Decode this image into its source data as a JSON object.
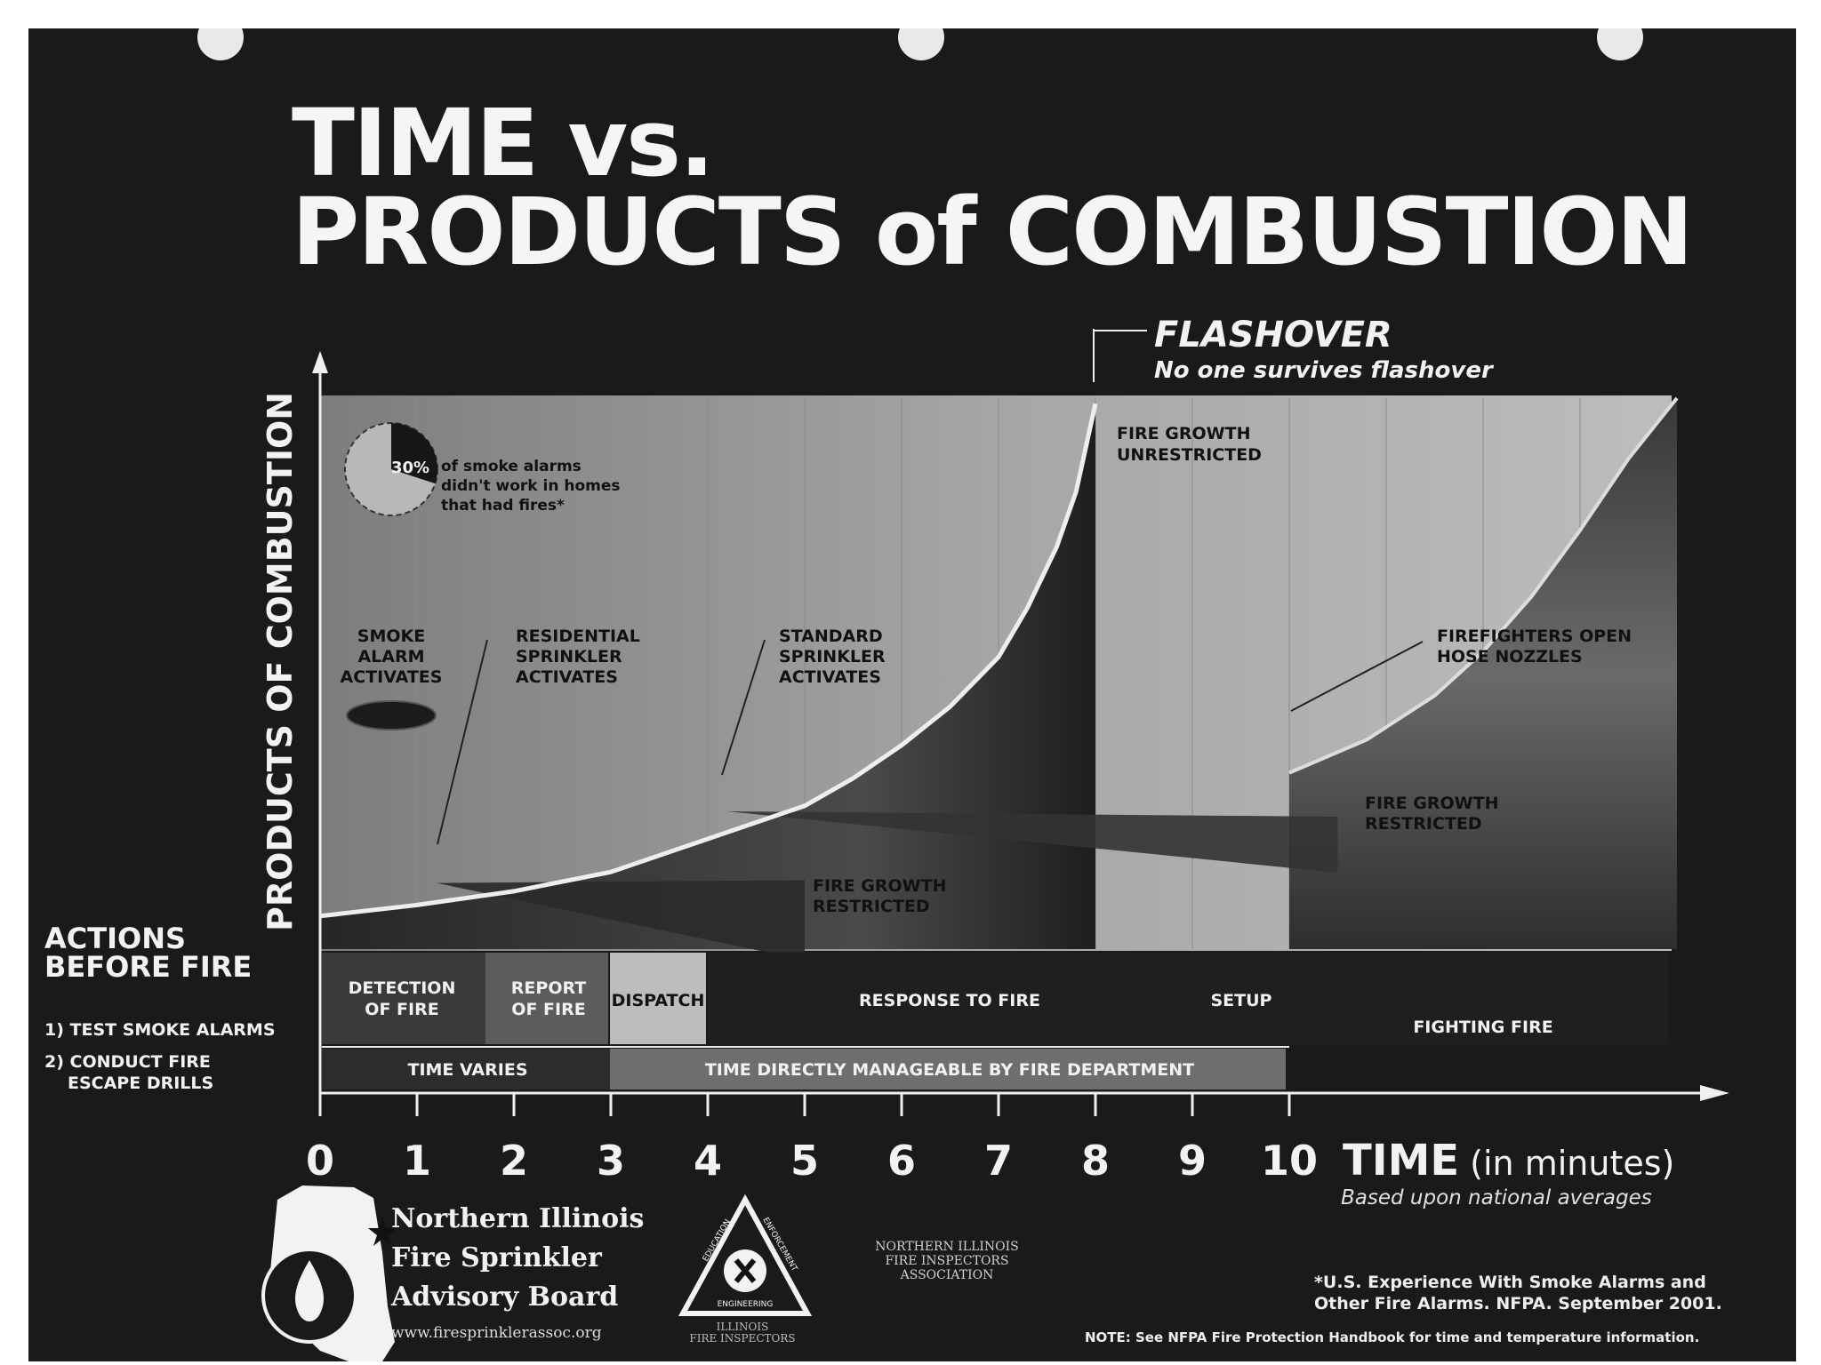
{
  "title_line1": "TIME vs.",
  "title_line2": "PRODUCTS of COMBUSTION",
  "flashover": {
    "label": "FLASHOVER",
    "note": "No one survives flashover"
  },
  "pie_note": {
    "percent": "30%",
    "text_lines": [
      "of smoke alarms",
      "didn't work in homes",
      "that had fires*"
    ],
    "fraction": 0.3
  },
  "annotations": {
    "smoke_alarm": [
      "SMOKE",
      "ALARM",
      "ACTIVATES"
    ],
    "residential": [
      "RESIDENTIAL",
      "SPRINKLER",
      "ACTIVATES"
    ],
    "standard": [
      "STANDARD",
      "SPRINKLER",
      "ACTIVATES"
    ],
    "unrestricted": [
      "FIRE GROWTH",
      "UNRESTRICTED"
    ],
    "firefighters": [
      "FIREFIGHTERS OPEN",
      "HOSE NOZZLES"
    ],
    "restricted_right": [
      "FIRE GROWTH",
      "RESTRICTED"
    ],
    "restricted_mid": [
      "FIRE GROWTH",
      "RESTRICTED"
    ]
  },
  "phases": {
    "detection": [
      "DETECTION",
      "OF FIRE"
    ],
    "report": [
      "REPORT",
      "OF FIRE"
    ],
    "dispatch": "DISPATCH",
    "response": "RESPONSE TO FIRE",
    "setup": "SETUP",
    "fighting": "FIGHTING FIRE",
    "time_varies": "TIME VARIES",
    "time_managed": "TIME DIRECTLY MANAGEABLE BY FIRE DEPARTMENT"
  },
  "actions": {
    "heading_line1": "ACTIONS",
    "heading_line2": "BEFORE FIRE",
    "item1": "1) TEST SMOKE ALARMS",
    "item2_line1": "2) CONDUCT FIRE",
    "item2_line2": "ESCAPE DRILLS"
  },
  "org": {
    "line1": "Northern Illinois",
    "line2": "Fire Sprinkler",
    "line3": "Advisory Board",
    "url": "www.firesprinklerassoc.org",
    "inspectors_line1": "NORTHERN ILLINOIS",
    "inspectors_line2": "FIRE INSPECTORS",
    "inspectors_line3": "ASSOCIATION",
    "badge_line1": "ILLINOIS",
    "badge_line2": "FIRE INSPECTORS"
  },
  "badge_words": [
    "EDUCATION",
    "ENGINEERING",
    "ENFORCEMENT"
  ],
  "footnote_line1": "*U.S. Experience With Smoke Alarms and",
  "footnote_line2": "Other Fire Alarms. NFPA. September 2001.",
  "note": "NOTE: See NFPA Fire Protection Handbook for time and temperature information.",
  "colors": {
    "background": "#1a1a1a",
    "panel": "#a3a3a3",
    "text_light": "#f2f2f2"
  },
  "chart_data": {
    "type": "area",
    "title": "TIME vs. PRODUCTS of COMBUSTION",
    "xlabel": "TIME",
    "xlabel_suffix": "(in minutes)",
    "xlabel_note": "Based upon national averages",
    "ylabel": "PRODUCTS OF COMBUSTION",
    "xlim": [
      0,
      14
    ],
    "ylim": [
      0,
      10
    ],
    "x_ticks": [
      "0",
      "1",
      "2",
      "3",
      "4",
      "5",
      "6",
      "7",
      "8",
      "9",
      "10"
    ],
    "grid": true,
    "series": [
      {
        "key": "unrestricted",
        "x": [
          0,
          1,
          2,
          3,
          4,
          5,
          5.5,
          6,
          6.5,
          7,
          7.3,
          7.6,
          7.8,
          8
        ],
        "y": [
          0.6,
          0.8,
          1.05,
          1.4,
          2.0,
          2.6,
          3.1,
          3.7,
          4.4,
          5.3,
          6.2,
          7.3,
          8.3,
          9.9
        ]
      },
      {
        "key": "residential",
        "x": [
          1.2,
          5
        ],
        "y": [
          1.2,
          0.8
        ]
      },
      {
        "key": "standard",
        "x": [
          4.2,
          10.5
        ],
        "y": [
          2.5,
          2.0
        ]
      },
      {
        "key": "late",
        "x": [
          10,
          10.8,
          11.5,
          12,
          12.5,
          13,
          13.5,
          14
        ],
        "y": [
          3.2,
          3.8,
          4.6,
          5.4,
          6.4,
          7.6,
          8.9,
          10
        ]
      }
    ]
  }
}
